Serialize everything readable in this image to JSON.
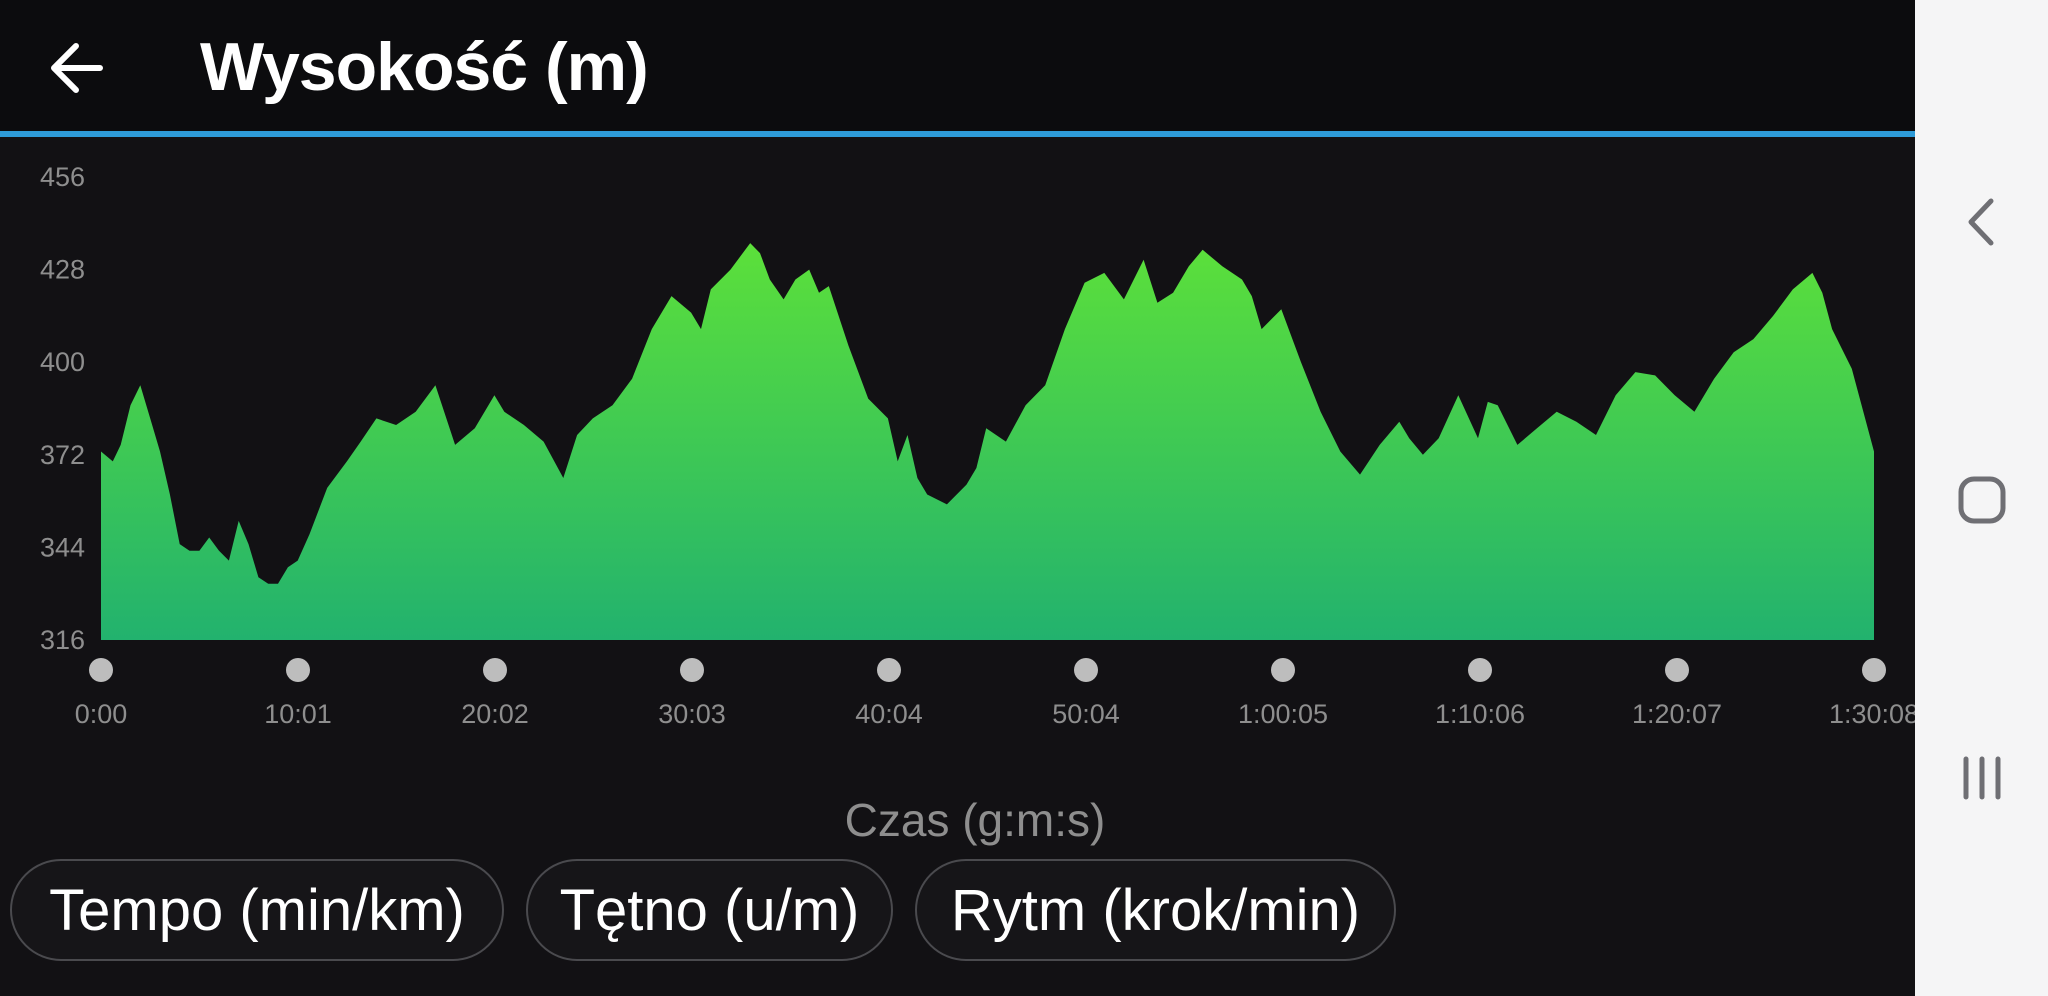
{
  "header": {
    "title": "Wysokość (m)",
    "back_icon": "arrow-left-icon"
  },
  "chart_data": {
    "type": "area",
    "title": "Wysokość (m)",
    "xlabel": "Czas (g:m:s)",
    "ylabel": "",
    "y_ticks": [
      456,
      428,
      400,
      372,
      344,
      316
    ],
    "ylim": [
      316,
      456
    ],
    "x_ticks": [
      "0:00",
      "10:01",
      "20:02",
      "30:03",
      "40:04",
      "50:04",
      "1:00:05",
      "1:10:06",
      "1:20:07",
      "1:30:08"
    ],
    "x_unit": "minutes",
    "xlim": [
      0,
      90.13
    ],
    "series": [
      {
        "name": "",
        "x": [
          0,
          0.6,
          1.0,
          1.5,
          2.0,
          2.5,
          3.0,
          3.5,
          4.0,
          4.5,
          5.0,
          5.5,
          6.0,
          6.5,
          7.0,
          7.5,
          8.0,
          8.5,
          9.0,
          9.5,
          10.0,
          10.6,
          11.5,
          12.5,
          13.2,
          14.0,
          15.0,
          16.0,
          17.0,
          18.0,
          19.0,
          20.0,
          20.5,
          21.5,
          22.5,
          23.5,
          24.2,
          25.0,
          26.0,
          27.0,
          28.0,
          29.0,
          30.0,
          30.5,
          31.0,
          32.0,
          33.0,
          33.5,
          34.0,
          34.7,
          35.3,
          36.0,
          36.5,
          37.0,
          38.0,
          39.0,
          40.0,
          40.5,
          41.0,
          41.5,
          42.0,
          43.0,
          44.0,
          44.5,
          45.0,
          46.0,
          47.0,
          48.0,
          49.0,
          50.0,
          51.0,
          52.0,
          53.0,
          53.7,
          54.5,
          55.3,
          56.0,
          57.0,
          58.0,
          58.5,
          59.0,
          60.0,
          61.0,
          62.0,
          63.0,
          64.0,
          65.0,
          66.0,
          66.5,
          67.2,
          68.0,
          69.0,
          70.0,
          70.5,
          71.0,
          72.0,
          73.0,
          74.0,
          75.0,
          76.0,
          77.0,
          78.0,
          79.0,
          80.0,
          81.0,
          82.0,
          83.0,
          84.0,
          85.0,
          86.0,
          87.0,
          87.5,
          88.0,
          89.0,
          90.13
        ],
        "values": [
          373,
          370,
          375,
          387,
          393,
          383,
          373,
          360,
          345,
          343,
          343,
          347,
          343,
          340,
          352,
          345,
          335,
          333,
          333,
          338,
          340,
          348,
          362,
          370,
          376,
          383,
          381,
          385,
          393,
          375,
          380,
          390,
          385,
          381,
          376,
          365,
          378,
          383,
          387,
          395,
          410,
          420,
          415,
          410,
          422,
          428,
          436,
          433,
          425,
          419,
          425,
          428,
          421,
          423,
          405,
          389,
          383,
          370,
          378,
          365,
          360,
          357,
          363,
          368,
          380,
          376,
          387,
          393,
          410,
          424,
          427,
          419,
          431,
          418,
          421,
          429,
          434,
          429,
          425,
          420,
          410,
          416,
          400,
          385,
          373,
          366,
          375,
          382,
          377,
          372,
          377,
          390,
          377,
          388,
          387,
          375,
          380,
          385,
          382,
          378,
          390,
          397,
          396,
          390,
          385,
          395,
          403,
          407,
          414,
          422,
          427,
          421,
          410,
          398,
          373
        ]
      }
    ]
  },
  "tabs": [
    {
      "label": "Tempo (min/km)"
    },
    {
      "label": "Tętno (u/m)"
    },
    {
      "label": "Rytm (krok/min)"
    }
  ],
  "navbar": {
    "back_icon": "chevron-left-icon",
    "home_icon": "home-icon",
    "recents_icon": "recents-icon"
  },
  "colors": {
    "background": "#121114",
    "accent": "#2e9bd8",
    "area_top": "#5ce03a",
    "area_bottom": "#22b26e"
  }
}
